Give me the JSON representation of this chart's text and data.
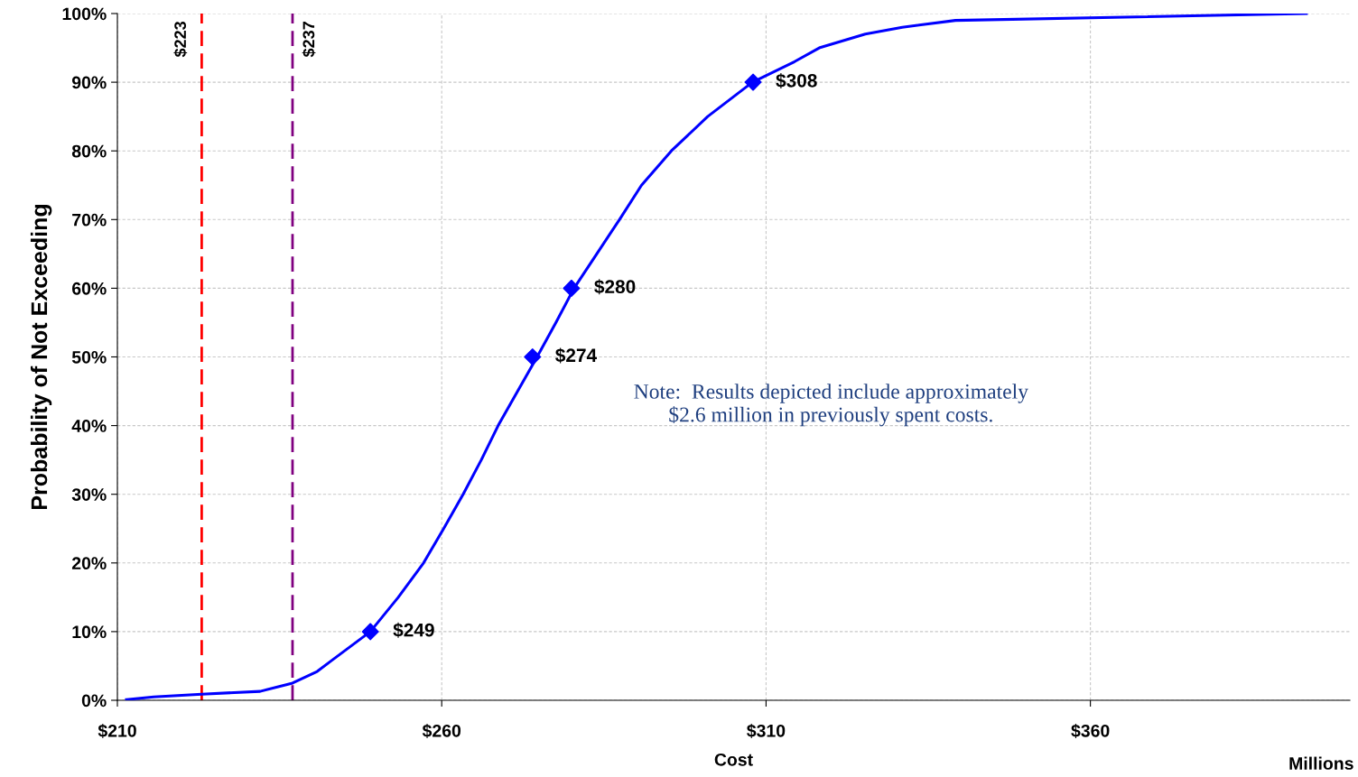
{
  "chart_data": {
    "type": "line",
    "xlabel": "Cost",
    "ylabel": "Probability of Not Exceeding",
    "xlim": [
      210,
      400
    ],
    "ylim": [
      0,
      100
    ],
    "xticks": [
      {
        "value": 210,
        "label": "$210"
      },
      {
        "value": 260,
        "label": "$260"
      },
      {
        "value": 310,
        "label": "$310"
      },
      {
        "value": 360,
        "label": "$360"
      }
    ],
    "yticks": [
      {
        "value": 0,
        "label": "0%"
      },
      {
        "value": 10,
        "label": "10%"
      },
      {
        "value": 20,
        "label": "20%"
      },
      {
        "value": 30,
        "label": "30%"
      },
      {
        "value": 40,
        "label": "40%"
      },
      {
        "value": 50,
        "label": "50%"
      },
      {
        "value": 60,
        "label": "60%"
      },
      {
        "value": 70,
        "label": "70%"
      },
      {
        "value": 80,
        "label": "80%"
      },
      {
        "value": 90,
        "label": "90%"
      },
      {
        "value": 100,
        "label": "100%"
      }
    ],
    "grid": true,
    "series": [
      {
        "color": "#0000ff",
        "marker": "none",
        "line_style": "solid",
        "x": [
          211.4,
          215.6,
          223,
          232,
          237,
          240.8,
          242.9,
          249,
          253.3,
          257.2,
          260.3,
          263.3,
          266.1,
          268.7,
          271.7,
          274.7,
          277.6,
          280.4,
          283.9,
          287.4,
          290.8,
          295.4,
          301,
          307.9,
          314.4,
          318.2,
          325.3,
          331,
          339.2,
          393.3
        ],
        "values": [
          0.1,
          0.5,
          0.9,
          1.3,
          2.5,
          4.2,
          5.7,
          10,
          15,
          20,
          25,
          30,
          35,
          40,
          45,
          50,
          55,
          60,
          65,
          70,
          75,
          80,
          85,
          90,
          93,
          95,
          97,
          98,
          99,
          100
        ]
      },
      {
        "type": "scatter",
        "color": "#0000ff",
        "marker": "diamond",
        "x": [
          249,
          274,
          280,
          308
        ],
        "values": [
          10,
          50,
          60,
          90
        ]
      }
    ],
    "ref_lines": [
      {
        "axis": "x",
        "value": 223,
        "label": "$223",
        "color": "#ff0000",
        "line_style": "dashed"
      },
      {
        "axis": "x",
        "value": 237,
        "label": "$237",
        "color": "#800080",
        "line_style": "dashed"
      }
    ],
    "annotations": [
      "Note:  Results depicted include approximately\n$2.6 million in previously spent costs.",
      "Millions",
      {
        "text": "$249",
        "x": 249,
        "y": 10
      },
      {
        "text": "$274",
        "x": 274,
        "y": 50
      },
      {
        "text": "$280",
        "x": 280,
        "y": 60
      },
      {
        "text": "$308",
        "x": 308,
        "y": 90
      }
    ]
  }
}
